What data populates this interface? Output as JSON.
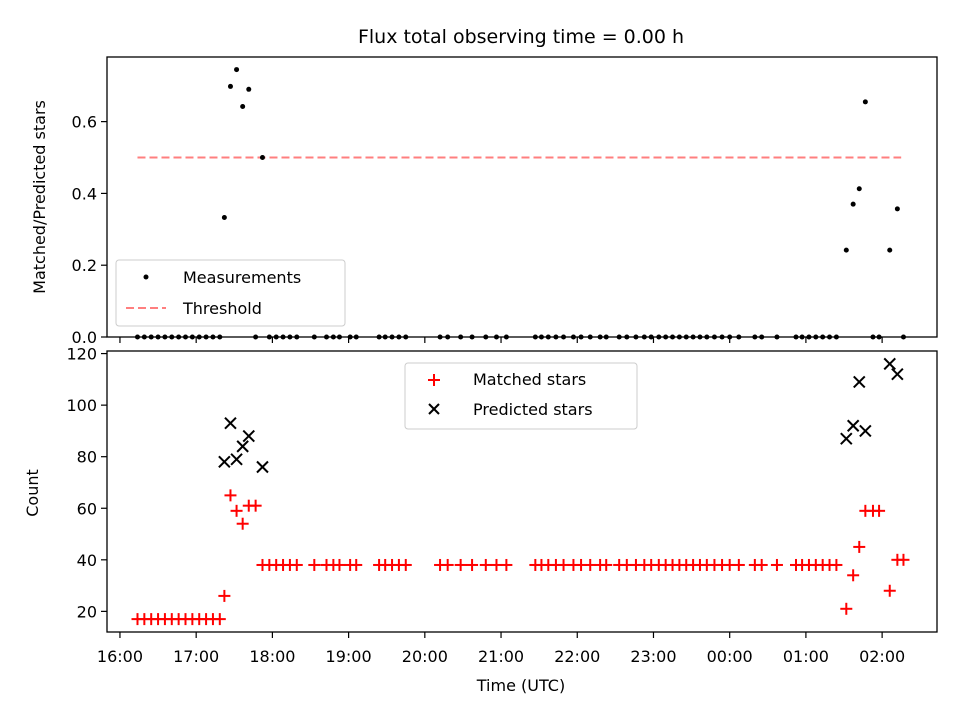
{
  "chart_data": [
    {
      "type": "scatter",
      "title": "Flux total observing time = 0.00 h",
      "xlabel": "",
      "ylabel": "Matched/Predicted stars",
      "ylim": [
        0,
        0.78
      ],
      "yticks": [
        "0.0",
        "0.2",
        "0.4",
        "0.6"
      ],
      "ytick_values": [
        0,
        0.2,
        0.4,
        0.6
      ],
      "xlim": [
        15.83,
        26.72
      ],
      "grid": false,
      "legend_position": "lower-left",
      "series": [
        {
          "name": "Measurements",
          "kind": "scatter",
          "marker": "dot",
          "color": "#000000",
          "x": [
            16.23,
            16.32,
            16.41,
            16.5,
            16.59,
            16.68,
            16.77,
            16.86,
            16.95,
            17.04,
            17.13,
            17.22,
            17.31,
            17.37,
            17.45,
            17.53,
            17.61,
            17.69,
            17.78,
            17.87,
            17.96,
            18.05,
            18.14,
            18.23,
            18.32,
            18.55,
            18.71,
            18.8,
            18.88,
            19.02,
            19.1,
            19.4,
            19.48,
            19.57,
            19.66,
            19.75,
            20.2,
            20.3,
            20.47,
            20.62,
            20.8,
            20.94,
            21.07,
            21.45,
            21.53,
            21.62,
            21.72,
            21.82,
            21.95,
            22.05,
            22.17,
            22.3,
            22.38,
            22.55,
            22.65,
            22.77,
            22.88,
            22.97,
            23.07,
            23.16,
            23.25,
            23.34,
            23.43,
            23.52,
            23.61,
            23.7,
            23.8,
            23.9,
            24.0,
            24.12,
            24.33,
            24.42,
            24.62,
            24.87,
            24.95,
            25.04,
            25.13,
            25.22,
            25.31,
            25.4,
            25.53,
            25.62,
            25.7,
            25.78,
            25.88,
            25.96,
            26.1,
            26.2,
            26.28
          ],
          "y": [
            0,
            0,
            0,
            0,
            0,
            0,
            0,
            0,
            0,
            0,
            0,
            0,
            0,
            0.333,
            0.698,
            0.745,
            0.642,
            0.69,
            0,
            0.5,
            0,
            0,
            0,
            0,
            0,
            0,
            0,
            0,
            0,
            0,
            0,
            0,
            0,
            0,
            0,
            0,
            0,
            0,
            0,
            0,
            0,
            0,
            0,
            0,
            0,
            0,
            0,
            0,
            0,
            0,
            0,
            0,
            0,
            0,
            0,
            0,
            0,
            0,
            0,
            0,
            0,
            0,
            0,
            0,
            0,
            0,
            0,
            0,
            0,
            0,
            0,
            0,
            0,
            0,
            0,
            0,
            0,
            0,
            0,
            0,
            0.242,
            0.37,
            0.413,
            0.655,
            0,
            0,
            0.242,
            0.357,
            0
          ]
        },
        {
          "name": "Threshold",
          "kind": "line",
          "style": "dashed",
          "color": "#ff7f7f",
          "x": [
            16.23,
            26.25
          ],
          "y": [
            0.5,
            0.5
          ]
        }
      ]
    },
    {
      "type": "scatter",
      "title": "",
      "xlabel": "Time (UTC)",
      "ylabel": "Count",
      "ylim": [
        12,
        121
      ],
      "yticks": [
        "20",
        "40",
        "60",
        "80",
        "100",
        "120"
      ],
      "ytick_values": [
        20,
        40,
        60,
        80,
        100,
        120
      ],
      "xlim": [
        15.83,
        26.72
      ],
      "xticks": [
        "16:00",
        "17:00",
        "18:00",
        "19:00",
        "20:00",
        "21:00",
        "22:00",
        "23:00",
        "00:00",
        "01:00",
        "02:00"
      ],
      "xtick_values": [
        16,
        17,
        18,
        19,
        20,
        21,
        22,
        23,
        24,
        25,
        26
      ],
      "grid": false,
      "legend_position": "top-center",
      "series": [
        {
          "name": "Matched stars",
          "kind": "scatter",
          "marker": "plus",
          "color": "#ff0000",
          "x": [
            16.23,
            16.32,
            16.41,
            16.5,
            16.59,
            16.68,
            16.77,
            16.86,
            16.95,
            17.04,
            17.13,
            17.22,
            17.31,
            17.37,
            17.45,
            17.53,
            17.61,
            17.69,
            17.78,
            17.87,
            17.96,
            18.05,
            18.14,
            18.23,
            18.32,
            18.55,
            18.71,
            18.8,
            18.88,
            19.02,
            19.1,
            19.4,
            19.48,
            19.57,
            19.66,
            19.75,
            20.2,
            20.3,
            20.47,
            20.62,
            20.8,
            20.94,
            21.07,
            21.45,
            21.53,
            21.62,
            21.72,
            21.82,
            21.95,
            22.05,
            22.17,
            22.3,
            22.38,
            22.55,
            22.65,
            22.77,
            22.88,
            22.97,
            23.07,
            23.16,
            23.25,
            23.34,
            23.43,
            23.52,
            23.61,
            23.7,
            23.8,
            23.9,
            24.0,
            24.12,
            24.33,
            24.42,
            24.62,
            24.87,
            24.95,
            25.04,
            25.13,
            25.22,
            25.31,
            25.4,
            25.53,
            25.62,
            25.7,
            25.78,
            25.88,
            25.96,
            26.1,
            26.2,
            26.28
          ],
          "y": [
            17,
            17,
            17,
            17,
            17,
            17,
            17,
            17,
            17,
            17,
            17,
            17,
            17,
            26,
            65,
            59,
            54,
            61,
            61,
            38,
            38,
            38,
            38,
            38,
            38,
            38,
            38,
            38,
            38,
            38,
            38,
            38,
            38,
            38,
            38,
            38,
            38,
            38,
            38,
            38,
            38,
            38,
            38,
            38,
            38,
            38,
            38,
            38,
            38,
            38,
            38,
            38,
            38,
            38,
            38,
            38,
            38,
            38,
            38,
            38,
            38,
            38,
            38,
            38,
            38,
            38,
            38,
            38,
            38,
            38,
            38,
            38,
            38,
            38,
            38,
            38,
            38,
            38,
            38,
            38,
            21,
            34,
            45,
            59,
            59,
            59,
            28,
            40,
            40
          ]
        },
        {
          "name": "Predicted stars",
          "kind": "scatter",
          "marker": "cross",
          "color": "#000000",
          "x": [
            17.37,
            17.45,
            17.53,
            17.61,
            17.69,
            17.87,
            25.53,
            25.62,
            25.7,
            25.78,
            26.1,
            26.2
          ],
          "y": [
            78,
            93,
            79,
            84,
            88,
            76,
            87,
            92,
            109,
            90,
            116,
            112
          ]
        }
      ]
    }
  ]
}
